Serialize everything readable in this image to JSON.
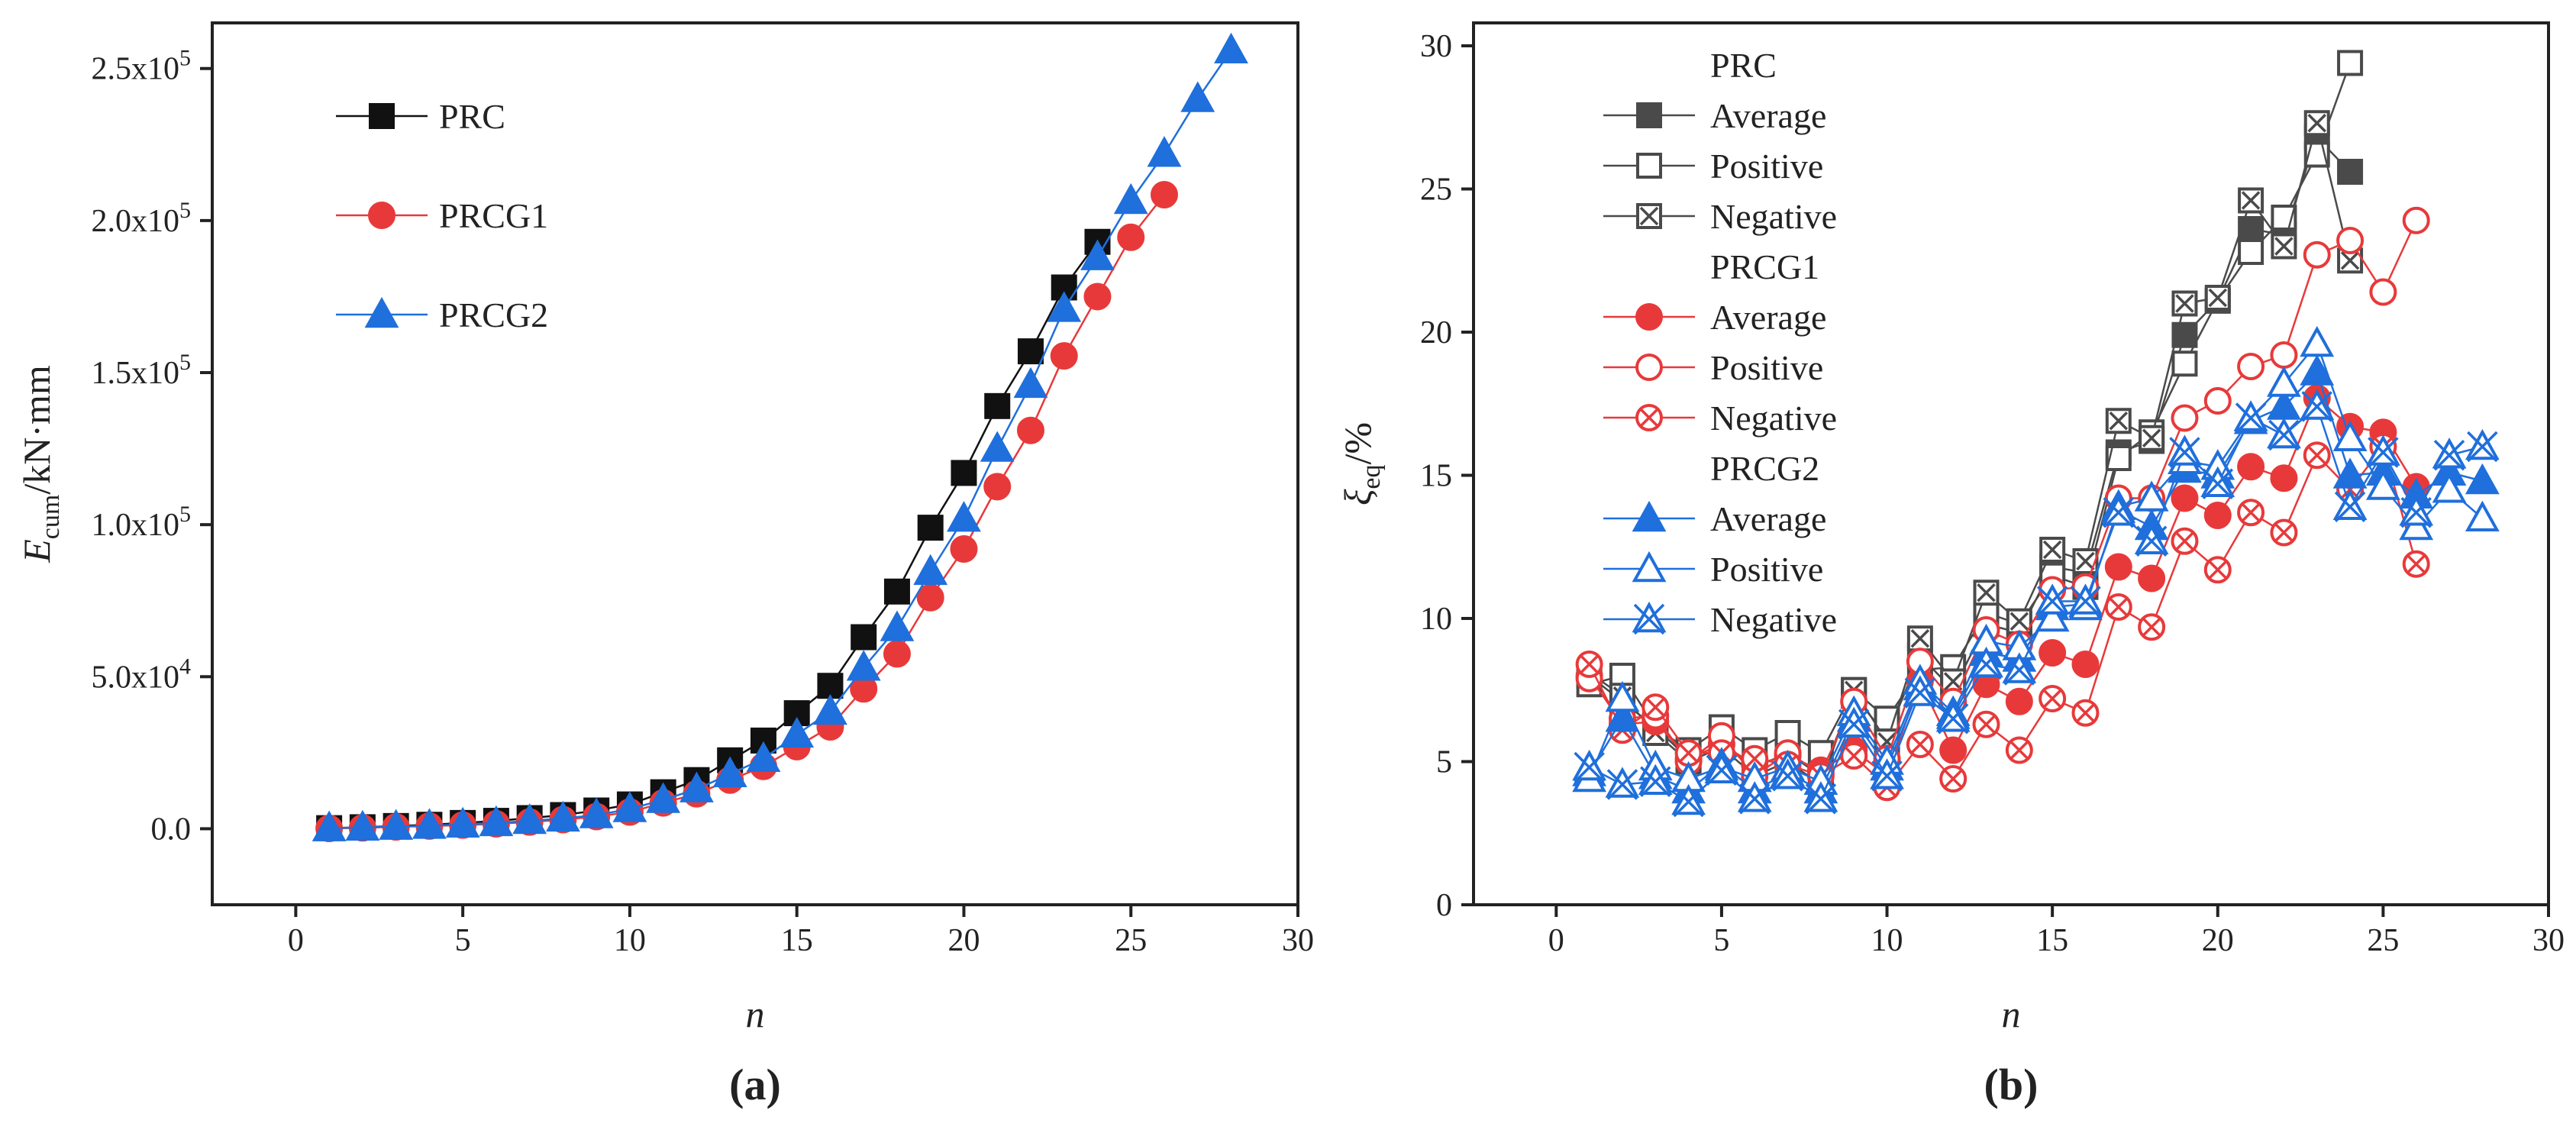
{
  "colors": {
    "prc": "#111111",
    "prc_dark": "#4a4a4a",
    "prcg1": "#e8393a",
    "prcg2": "#1f6fdc",
    "axis": "#222222"
  },
  "chart_data": [
    {
      "type": "line",
      "panel_label": "(a)",
      "xlabel": "n",
      "ylabel": "E_cum/kN·mm",
      "ylabel_main": "E",
      "ylabel_sub": "cum",
      "ylabel_rest": "/kN·mm",
      "xlim": [
        -2.5,
        30
      ],
      "ylim": [
        -25000,
        265000
      ],
      "xticks": [
        0,
        5,
        10,
        15,
        20,
        25,
        30
      ],
      "yticks": [
        {
          "value": 0,
          "label": "0.0"
        },
        {
          "value": 50000,
          "label": "5.0x10",
          "exp": "4"
        },
        {
          "value": 100000,
          "label": "1.0x10",
          "exp": "5"
        },
        {
          "value": 150000,
          "label": "1.5x10",
          "exp": "5"
        },
        {
          "value": 200000,
          "label": "2.0x10",
          "exp": "5"
        },
        {
          "value": 250000,
          "label": "2.5x10",
          "exp": "5"
        }
      ],
      "legend": [
        "PRC",
        "PRCG1",
        "PRCG2"
      ],
      "series": [
        {
          "name": "PRC",
          "marker": "square",
          "color": "#111111",
          "x": [
            1,
            2,
            3,
            4,
            5,
            6,
            7,
            8,
            9,
            10,
            11,
            12,
            13,
            14,
            15,
            16,
            17,
            18,
            19,
            20,
            21,
            22,
            23,
            24
          ],
          "values": [
            200,
            500,
            900,
            1300,
            1900,
            2600,
            3500,
            4500,
            6000,
            8000,
            12000,
            16000,
            22500,
            29000,
            38000,
            47000,
            63000,
            78000,
            99000,
            117000,
            139000,
            157000,
            178000,
            193000
          ]
        },
        {
          "name": "PRCG1",
          "marker": "circle",
          "color": "#e8393a",
          "x": [
            1,
            2,
            3,
            4,
            5,
            6,
            7,
            8,
            9,
            10,
            11,
            12,
            13,
            14,
            15,
            16,
            17,
            18,
            19,
            20,
            21,
            22,
            23,
            24,
            25,
            26
          ],
          "values": [
            100,
            300,
            600,
            900,
            1200,
            1600,
            2200,
            3000,
            4000,
            5500,
            8500,
            11500,
            16000,
            20500,
            27000,
            33500,
            46000,
            57500,
            76000,
            92000,
            112500,
            131000,
            155500,
            175000,
            194500,
            208500
          ]
        },
        {
          "name": "PRCG2",
          "marker": "triangle",
          "color": "#1f6fdc",
          "x": [
            1,
            2,
            3,
            4,
            5,
            6,
            7,
            8,
            9,
            10,
            11,
            12,
            13,
            14,
            15,
            16,
            17,
            18,
            19,
            20,
            21,
            22,
            23,
            24,
            25,
            26,
            27,
            28
          ],
          "values": [
            200,
            400,
            700,
            1000,
            1400,
            1900,
            2600,
            3400,
            4500,
            6500,
            9500,
            13000,
            18000,
            23000,
            31000,
            38500,
            53000,
            66000,
            84500,
            102000,
            125000,
            146000,
            171000,
            188000,
            206500,
            222000,
            240000,
            256000
          ]
        }
      ]
    },
    {
      "type": "line",
      "panel_label": "(b)",
      "xlabel": "n",
      "ylabel": "ξ_eq/%",
      "ylabel_main": "ξ",
      "ylabel_sub": "eq",
      "ylabel_rest": "/%",
      "xlim": [
        -2.5,
        30
      ],
      "ylim": [
        0,
        30.8
      ],
      "xticks": [
        0,
        5,
        10,
        15,
        20,
        25,
        30
      ],
      "yticks": [
        {
          "value": 0,
          "label": "0"
        },
        {
          "value": 5,
          "label": "5"
        },
        {
          "value": 10,
          "label": "10"
        },
        {
          "value": 15,
          "label": "15"
        },
        {
          "value": 20,
          "label": "20"
        },
        {
          "value": 25,
          "label": "25"
        },
        {
          "value": 30,
          "label": "30"
        }
      ],
      "legend_groups": [
        {
          "title": "PRC",
          "items": [
            "Average",
            "Positive",
            "Negative"
          ]
        },
        {
          "title": "PRCG1",
          "items": [
            "Average",
            "Positive",
            "Negative"
          ]
        },
        {
          "title": "PRCG2",
          "items": [
            "Average",
            "Positive",
            "Negative"
          ]
        }
      ],
      "series": [
        {
          "name": "PRC Average",
          "marker": "square-filled",
          "color": "#4a4a4a",
          "x": [
            1,
            2,
            3,
            4,
            5,
            6,
            7,
            8,
            9,
            10,
            11,
            12,
            13,
            14,
            15,
            16,
            17,
            18,
            19,
            20,
            21,
            22,
            23,
            24
          ],
          "values": [
            8.0,
            7.1,
            6.2,
            5.1,
            5.6,
            4.8,
            5.3,
            4.5,
            7.3,
            5.9,
            8.7,
            7.5,
            9.8,
            9.5,
            11.8,
            11.6,
            15.8,
            16.2,
            19.9,
            21.1,
            23.6,
            23.4,
            26.8,
            25.6
          ]
        },
        {
          "name": "PRC Positive",
          "marker": "square-open",
          "color": "#4a4a4a",
          "x": [
            1,
            2,
            3,
            4,
            5,
            6,
            7,
            8,
            9,
            10,
            11,
            12,
            13,
            14,
            15,
            16,
            17,
            18,
            19,
            20,
            21,
            22,
            23,
            24
          ],
          "values": [
            7.7,
            8.0,
            6.2,
            5.4,
            6.2,
            5.4,
            6.0,
            5.3,
            7.5,
            6.5,
            8.2,
            8.3,
            10.2,
            9.8,
            11.5,
            11.1,
            15.6,
            16.5,
            18.9,
            21.1,
            22.8,
            24.0,
            26.2,
            29.4
          ]
        },
        {
          "name": "PRC Negative",
          "marker": "square-x",
          "color": "#4a4a4a",
          "x": [
            1,
            2,
            3,
            4,
            5,
            6,
            7,
            8,
            9,
            10,
            11,
            12,
            13,
            14,
            15,
            16,
            17,
            18,
            19,
            20,
            21,
            22,
            23,
            24
          ],
          "values": [
            8.1,
            7.3,
            6.0,
            5.0,
            5.5,
            4.5,
            5.0,
            4.2,
            7.5,
            5.7,
            9.3,
            7.8,
            10.9,
            9.9,
            12.4,
            12.0,
            16.9,
            16.3,
            21.0,
            21.2,
            24.6,
            23.0,
            27.3,
            22.5
          ]
        },
        {
          "name": "PRCG1 Average",
          "marker": "circle-filled",
          "color": "#e8393a",
          "x": [
            1,
            2,
            3,
            4,
            5,
            6,
            7,
            8,
            9,
            10,
            11,
            12,
            13,
            14,
            15,
            16,
            17,
            18,
            19,
            20,
            21,
            22,
            23,
            24,
            25,
            26
          ],
          "values": [
            8.0,
            6.3,
            6.4,
            5.1,
            5.6,
            4.9,
            5.2,
            4.7,
            5.4,
            4.5,
            7.8,
            5.4,
            7.7,
            7.1,
            8.8,
            8.4,
            11.8,
            11.4,
            14.2,
            13.6,
            15.3,
            14.9,
            17.7,
            16.7,
            16.5,
            14.6
          ]
        },
        {
          "name": "PRCG1 Positive",
          "marker": "circle-open",
          "color": "#e8393a",
          "x": [
            1,
            2,
            3,
            4,
            5,
            6,
            7,
            8,
            9,
            10,
            11,
            12,
            13,
            14,
            15,
            16,
            17,
            18,
            19,
            20,
            21,
            22,
            23,
            24,
            25,
            26
          ],
          "values": [
            7.9,
            6.5,
            6.6,
            5.0,
            5.9,
            4.5,
            5.3,
            4.6,
            7.1,
            5.1,
            8.5,
            7.1,
            9.6,
            9.1,
            11.0,
            11.1,
            14.2,
            14.2,
            17.0,
            17.6,
            18.8,
            19.2,
            22.7,
            23.2,
            21.4,
            23.9
          ]
        },
        {
          "name": "PRCG1 Negative",
          "marker": "circle-x",
          "color": "#e8393a",
          "x": [
            1,
            2,
            3,
            4,
            5,
            6,
            7,
            8,
            9,
            10,
            11,
            12,
            13,
            14,
            15,
            16,
            17,
            18,
            19,
            20,
            21,
            22,
            23,
            24,
            25,
            26
          ],
          "values": [
            8.4,
            6.1,
            6.9,
            5.3,
            5.3,
            5.1,
            4.9,
            4.5,
            5.2,
            4.1,
            5.6,
            4.4,
            6.3,
            5.4,
            7.2,
            6.7,
            10.4,
            9.7,
            12.7,
            11.7,
            13.7,
            13.0,
            15.7,
            14.5,
            16.0,
            11.9
          ]
        },
        {
          "name": "PRCG2 Average",
          "marker": "triangle-filled",
          "color": "#1f6fdc",
          "x": [
            1,
            2,
            3,
            4,
            5,
            6,
            7,
            8,
            9,
            10,
            11,
            12,
            13,
            14,
            15,
            16,
            17,
            18,
            19,
            20,
            21,
            22,
            23,
            24,
            25,
            26,
            27,
            28
          ],
          "values": [
            4.6,
            6.5,
            4.5,
            4.0,
            4.9,
            4.0,
            4.6,
            4.0,
            6.5,
            4.8,
            7.6,
            6.6,
            8.8,
            8.6,
            10.4,
            10.5,
            13.8,
            13.2,
            15.2,
            15.0,
            16.9,
            17.4,
            18.6,
            15.0,
            15.1,
            14.3,
            15.1,
            14.8
          ]
        },
        {
          "name": "PRCG2 Positive",
          "marker": "triangle-open",
          "color": "#1f6fdc",
          "x": [
            1,
            2,
            3,
            4,
            5,
            6,
            7,
            8,
            9,
            10,
            11,
            12,
            13,
            14,
            15,
            16,
            17,
            18,
            19,
            20,
            21,
            22,
            23,
            24,
            25,
            26,
            27,
            28
          ],
          "values": [
            4.4,
            7.2,
            4.8,
            4.4,
            4.8,
            4.4,
            4.8,
            4.3,
            6.7,
            5.0,
            7.8,
            6.7,
            9.2,
            9.0,
            10.0,
            10.4,
            13.9,
            14.2,
            15.5,
            15.3,
            17.0,
            18.2,
            19.6,
            16.3,
            14.6,
            13.2,
            14.5,
            13.5
          ]
        },
        {
          "name": "PRCG2 Negative",
          "marker": "triangle-x",
          "color": "#1f6fdc",
          "x": [
            1,
            2,
            3,
            4,
            5,
            6,
            7,
            8,
            9,
            10,
            11,
            12,
            13,
            14,
            15,
            16,
            17,
            18,
            19,
            20,
            21,
            22,
            23,
            24,
            25,
            26,
            27,
            28
          ],
          "values": [
            4.8,
            4.2,
            4.3,
            3.6,
            4.7,
            3.7,
            4.5,
            3.7,
            6.3,
            4.5,
            7.4,
            6.5,
            8.4,
            8.2,
            10.6,
            10.6,
            13.7,
            12.7,
            15.8,
            14.7,
            17.0,
            16.4,
            17.4,
            13.9,
            15.8,
            13.7,
            15.7,
            16.0
          ]
        }
      ]
    }
  ]
}
